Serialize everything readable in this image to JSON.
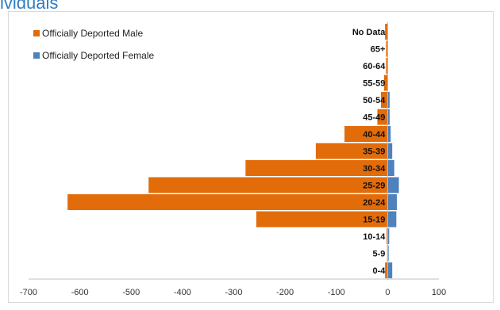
{
  "header_fragment": "ividuals",
  "chart_data": {
    "type": "bar",
    "orientation": "horizontal",
    "title": "",
    "xlabel": "",
    "ylabel": "",
    "xlim": [
      -700,
      100
    ],
    "x_ticks": [
      -700,
      -600,
      -500,
      -400,
      -300,
      -200,
      -100,
      0,
      100
    ],
    "grid": false,
    "legend_position": "top-left",
    "categories": [
      "0-4",
      "5-9",
      "10-14",
      "15-19",
      "20-24",
      "25-29",
      "30-34",
      "35-39",
      "40-44",
      "45-49",
      "50-54",
      "55-59",
      "60-64",
      "65+",
      "No Data"
    ],
    "series": [
      {
        "name": "Officially Deported Male",
        "color": "#e36c0a",
        "values": [
          -5,
          -1,
          -2,
          -256,
          -624,
          -466,
          -277,
          -140,
          -84,
          -20,
          -13,
          -7,
          -3,
          -3,
          -5
        ]
      },
      {
        "name": "Officially Deported Female",
        "color": "#4f81bd",
        "values": [
          9,
          2,
          3,
          17,
          18,
          22,
          13,
          9,
          6,
          4,
          4,
          1,
          1,
          1,
          1
        ]
      }
    ]
  }
}
